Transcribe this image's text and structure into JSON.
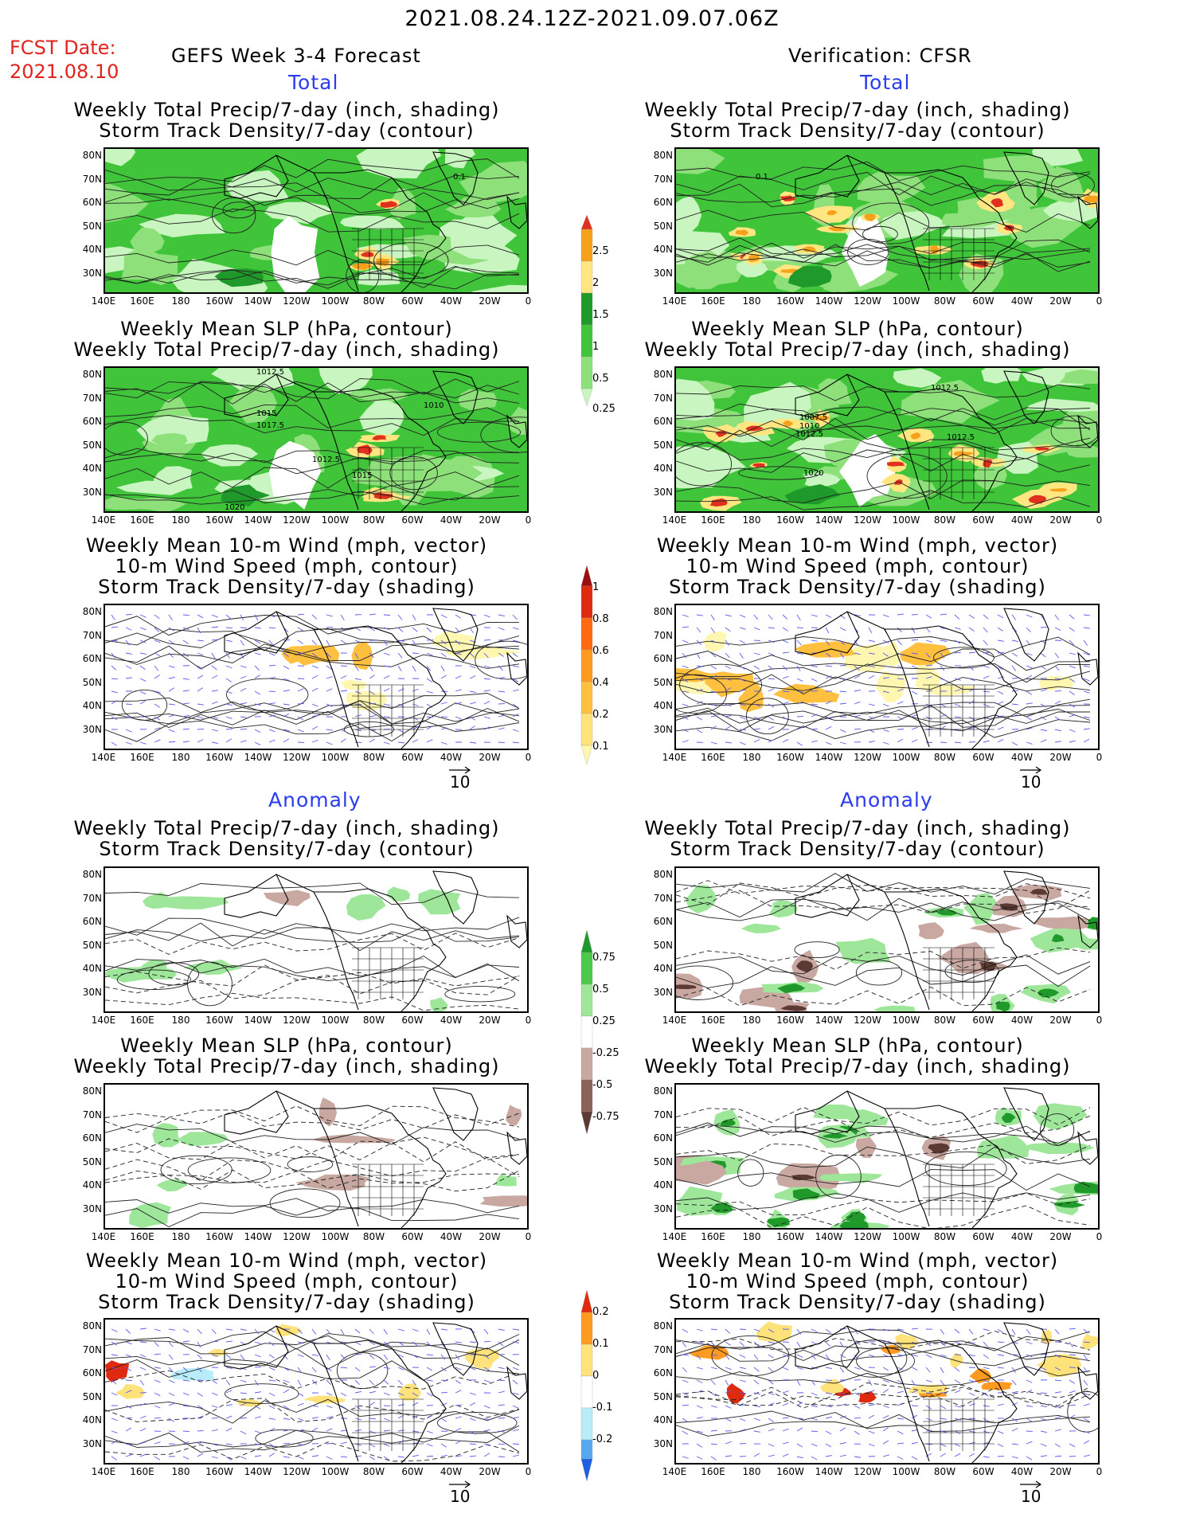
{
  "header": {
    "valid_period": "2021.08.24.12Z-2021.09.07.06Z",
    "fcst_label": "FCST Date:",
    "fcst_date": "2021.08.10",
    "left_title": "GEFS Week 3-4 Forecast",
    "right_title": "Verification: CFSR"
  },
  "sections": {
    "total": "Total",
    "anomaly": "Anomaly"
  },
  "panel_titles": {
    "precip_track": "Weekly Total Precip/7-day (inch, shading)\nStorm Track Density/7-day (contour)",
    "slp_precip": "Weekly Mean SLP (hPa, contour)\nWeekly Total Precip/7-day (inch, shading)",
    "wind_track": "Weekly Mean 10-m Wind (mph, vector)\n10-m Wind Speed (mph, contour)\nStorm Track Density/7-day (shading)"
  },
  "axes": {
    "lat_labels": [
      "80N",
      "70N",
      "60N",
      "50N",
      "40N",
      "30N"
    ],
    "lon_labels": [
      "140E",
      "160E",
      "180",
      "160W",
      "140W",
      "120W",
      "100W",
      "80W",
      "60W",
      "40W",
      "20W",
      "0"
    ]
  },
  "contour_labels": {
    "fcst_slp": [
      "1012.5",
      "1015",
      "1017.5",
      "1010",
      "1012.5",
      "1015",
      "1020"
    ],
    "obs_slp": [
      "1012.5",
      "1007.5",
      "1010",
      "1012.5",
      "1012.5",
      "1020"
    ],
    "fcst_track": "0.1",
    "obs_track": "0.1"
  },
  "vector_ref": "10",
  "colorbars": {
    "precip_total": [
      "0.25",
      "0.5",
      "1",
      "1.5",
      "2",
      "2.5"
    ],
    "track_total": [
      "0.1",
      "0.2",
      "0.4",
      "0.6",
      "0.8",
      "1"
    ],
    "precip_anom": [
      "-0.75",
      "-0.5",
      "-0.25",
      "0.25",
      "0.5",
      "0.75"
    ],
    "track_anom": [
      "-0.2",
      "-0.1",
      "0",
      "0.1",
      "0.2"
    ]
  },
  "colors": {
    "precip_total": [
      "#c8f5c0",
      "#8ee07a",
      "#3fc43a",
      "#1f9a2a",
      "#ffe680",
      "#f7a11a",
      "#e0301e"
    ],
    "track_total": [
      "#fff7b0",
      "#ffe27a",
      "#ffc040",
      "#ff9a20",
      "#ff6a10",
      "#e02a10",
      "#9a1010"
    ],
    "precip_anom": [
      "#5a3a32",
      "#8a6258",
      "#c8a8a0",
      "#ffffff",
      "#9ee69a",
      "#4cc84a",
      "#1f9a2a"
    ],
    "track_anom": [
      "#1e5fe0",
      "#58a8f0",
      "#b8ecf8",
      "#ffffff",
      "#ffe27a",
      "#ff9a20",
      "#e02a10"
    ],
    "title_red": "#e0231c",
    "section_blue": "#2a3bf0",
    "vector_blue": "#5a5af0"
  }
}
